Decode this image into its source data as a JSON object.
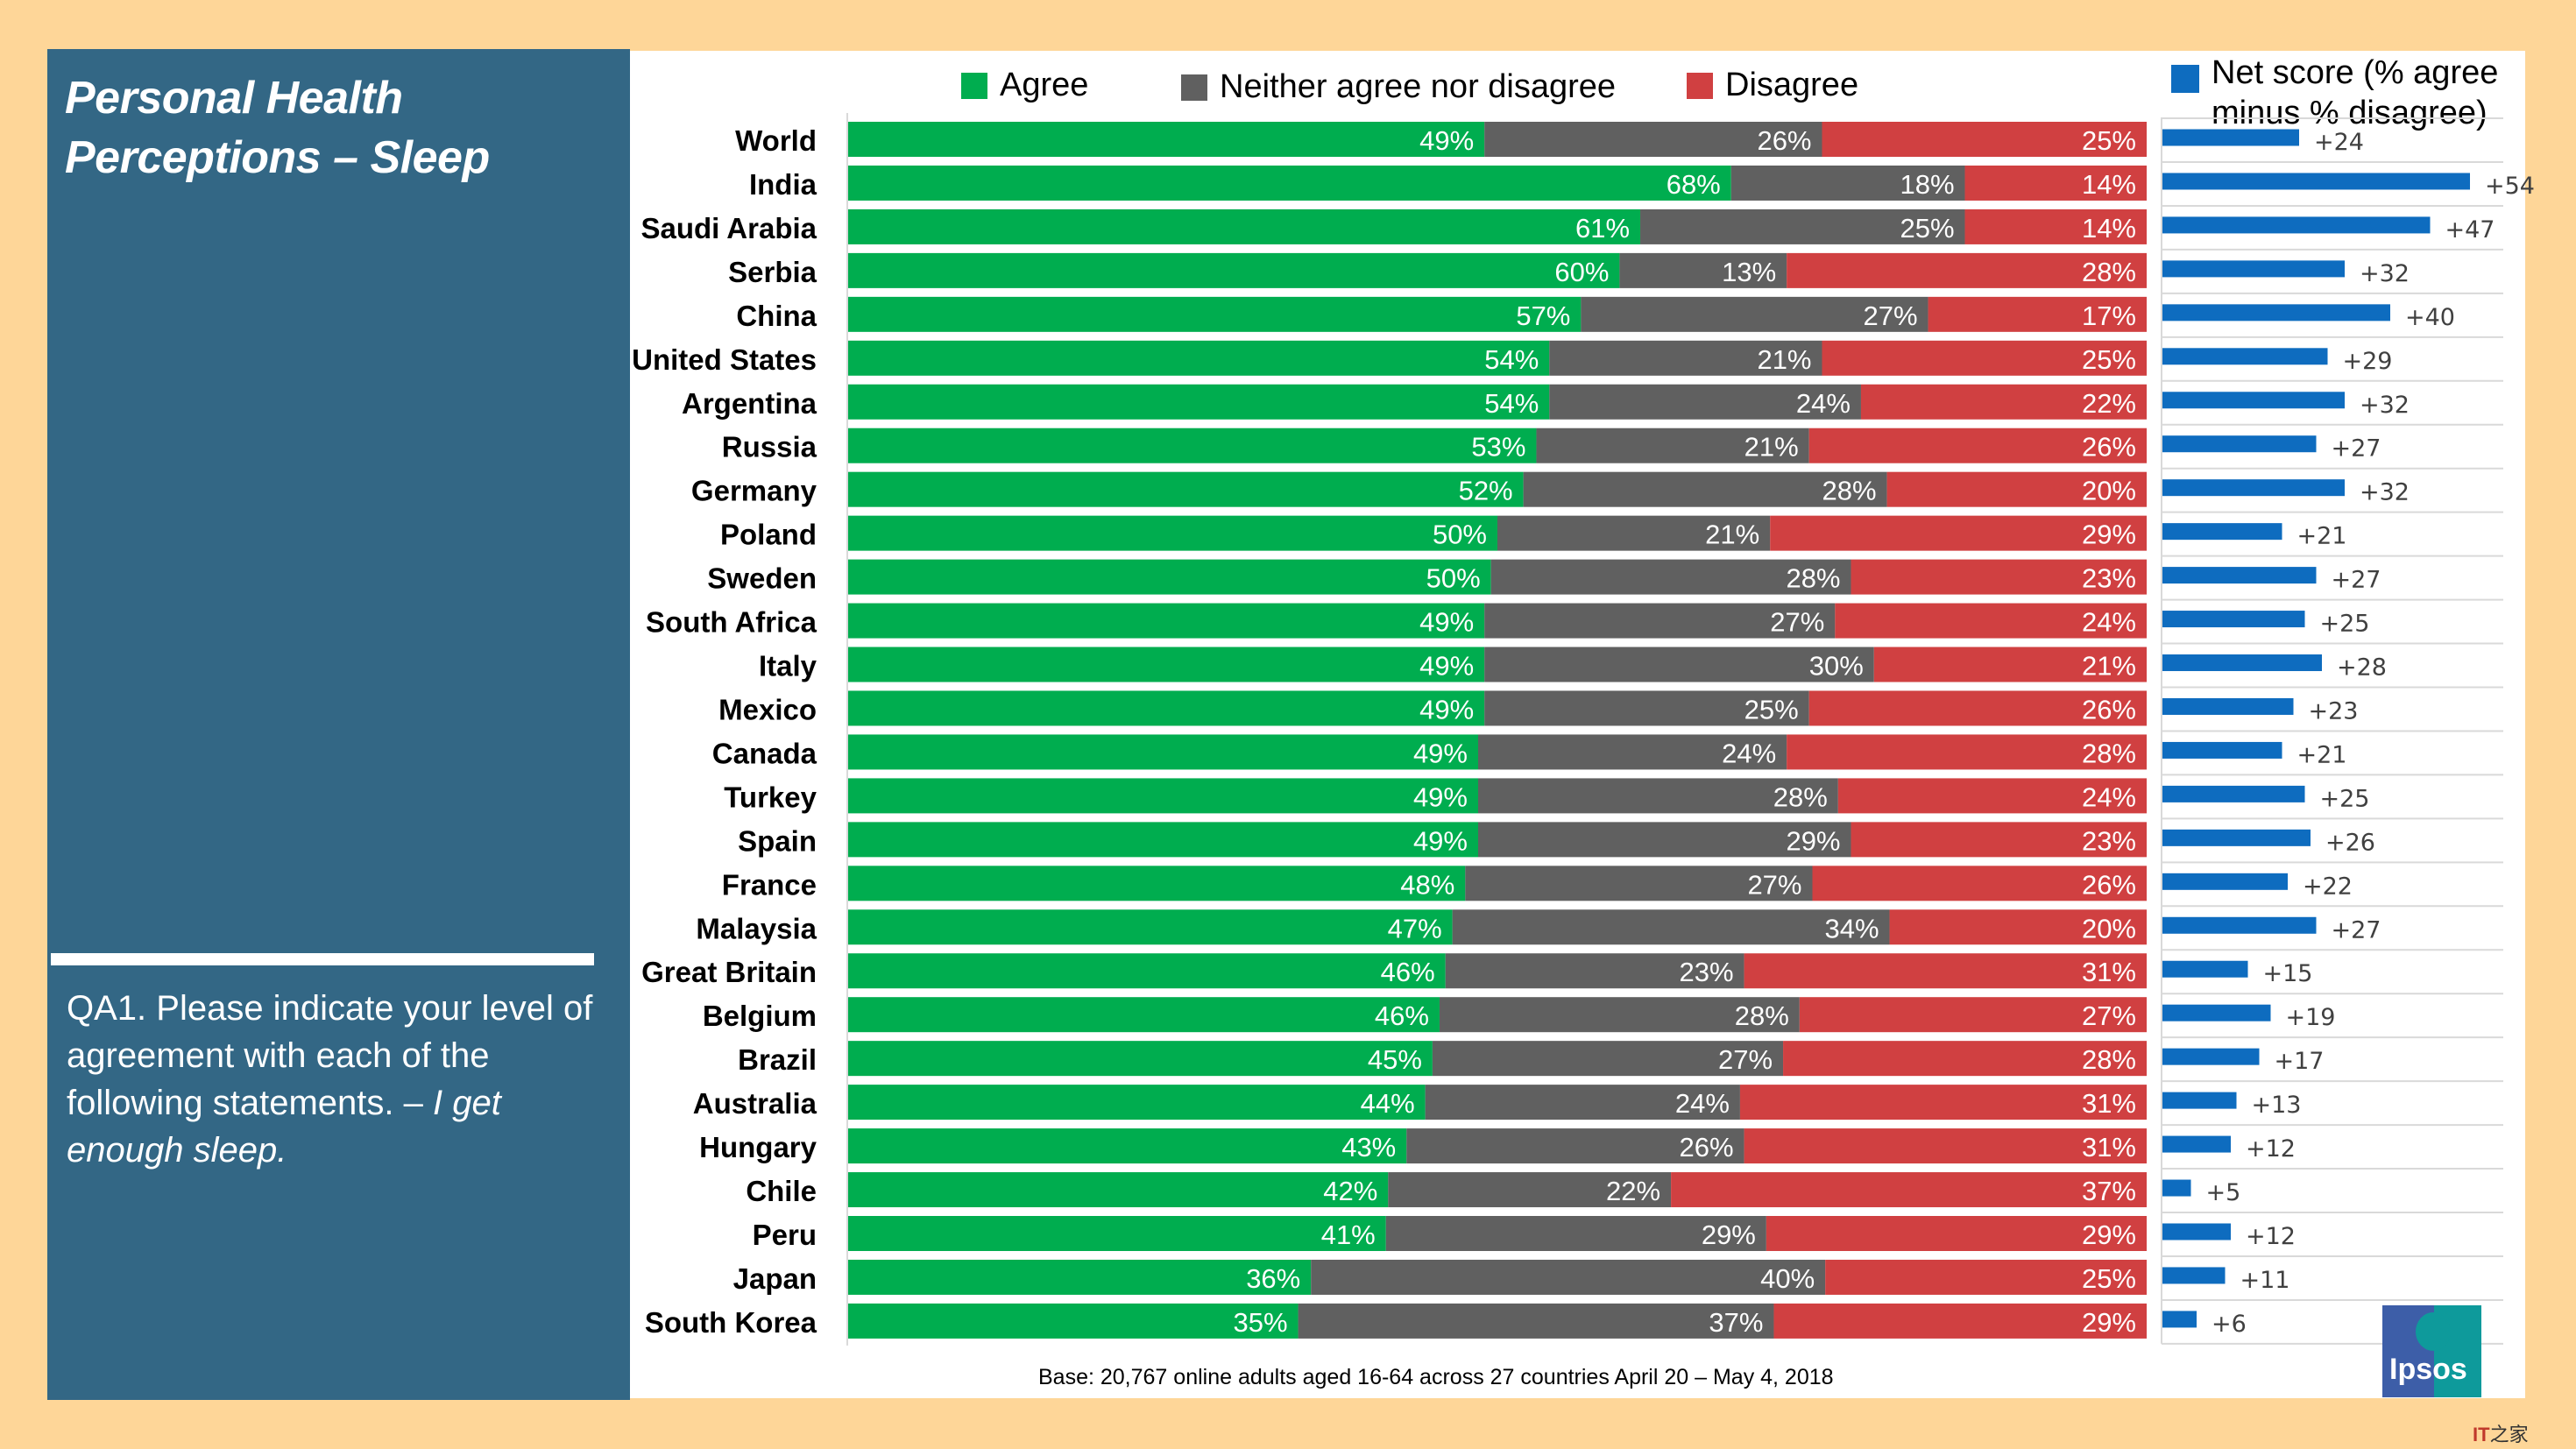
{
  "left_panel": {
    "title_line1": "Personal Health",
    "title_line2": "Perceptions – Sleep",
    "question_main": "QA1. Please indicate your level of agreement with each of the following statements. – ",
    "question_statement": "I get enough sleep."
  },
  "legend": {
    "agree": "Agree",
    "neither": "Neither agree nor disagree",
    "disagree": "Disagree",
    "net": "Net score (% agree minus % disagree)"
  },
  "colors": {
    "agree": "#00ad4f",
    "neither": "#606060",
    "disagree": "#d04041",
    "net": "#0e6cbf",
    "panel": "#336785",
    "background": "#fed698"
  },
  "base_note": "Base: 20,767 online adults aged 16-64 across 27 countries  April 20 – May 4, 2018",
  "logo": {
    "text": "Ipsos"
  },
  "watermark": {
    "brand": "IT",
    "suffix": "之家"
  },
  "chart_data": [
    {
      "type": "bar",
      "orientation": "horizontal-stacked-100",
      "title": "Personal Health Perceptions – Sleep",
      "legend_placement": "top",
      "categories": [
        "World",
        "India",
        "Saudi Arabia",
        "Serbia",
        "China",
        "United States",
        "Argentina",
        "Russia",
        "Germany",
        "Poland",
        "Sweden",
        "South Africa",
        "Italy",
        "Mexico",
        "Canada",
        "Turkey",
        "Spain",
        "France",
        "Malaysia",
        "Great Britain",
        "Belgium",
        "Brazil",
        "Australia",
        "Hungary",
        "Chile",
        "Peru",
        "Japan",
        "South Korea"
      ],
      "series": [
        {
          "name": "Agree",
          "values": [
            49,
            68,
            61,
            60,
            57,
            54,
            54,
            53,
            52,
            50,
            50,
            49,
            49,
            49,
            49,
            49,
            49,
            48,
            47,
            46,
            46,
            45,
            44,
            43,
            42,
            41,
            36,
            35
          ]
        },
        {
          "name": "Neither agree nor disagree",
          "values": [
            26,
            18,
            25,
            13,
            27,
            21,
            24,
            21,
            28,
            21,
            28,
            27,
            30,
            25,
            24,
            28,
            29,
            27,
            34,
            23,
            28,
            27,
            24,
            26,
            22,
            29,
            40,
            37
          ]
        },
        {
          "name": "Disagree",
          "values": [
            25,
            14,
            14,
            28,
            17,
            25,
            22,
            26,
            20,
            29,
            23,
            24,
            21,
            26,
            28,
            24,
            23,
            26,
            20,
            31,
            27,
            28,
            31,
            31,
            37,
            29,
            25,
            29
          ]
        }
      ],
      "value_suffix": "%",
      "xlim": [
        0,
        100
      ]
    },
    {
      "type": "bar",
      "orientation": "horizontal",
      "title": "Net score (% agree minus % disagree)",
      "categories": [
        "World",
        "India",
        "Saudi Arabia",
        "Serbia",
        "China",
        "United States",
        "Argentina",
        "Russia",
        "Germany",
        "Poland",
        "Sweden",
        "South Africa",
        "Italy",
        "Mexico",
        "Canada",
        "Turkey",
        "Spain",
        "France",
        "Malaysia",
        "Great Britain",
        "Belgium",
        "Brazil",
        "Australia",
        "Hungary",
        "Chile",
        "Peru",
        "Japan",
        "South Korea"
      ],
      "values": [
        24,
        54,
        47,
        32,
        40,
        29,
        32,
        27,
        32,
        21,
        27,
        25,
        28,
        23,
        21,
        25,
        26,
        22,
        27,
        15,
        19,
        17,
        13,
        12,
        5,
        12,
        11,
        6
      ],
      "value_prefix": "+",
      "xlim": [
        0,
        60
      ]
    }
  ]
}
